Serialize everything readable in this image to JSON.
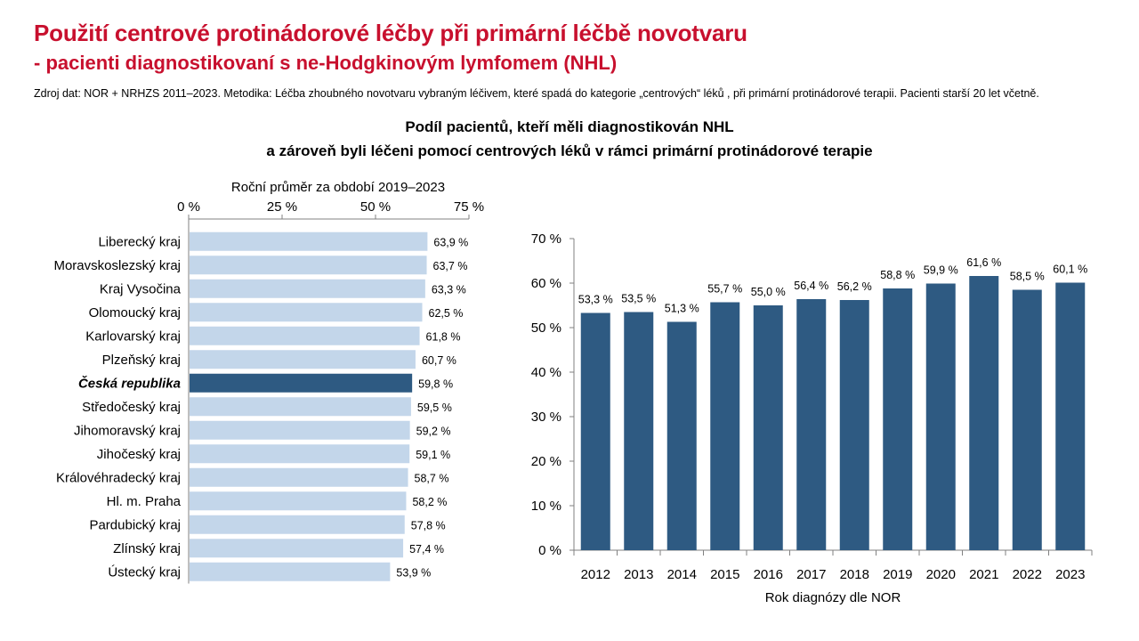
{
  "page": {
    "title": "Použití centrové protinádorové léčby při primární léčbě novotvaru",
    "subtitle": "- pacienti diagnostikovaní s ne-Hodgkinovým lymfomem (NHL)",
    "source": "Zdroj dat: NOR + NRHZS 2011–2023. Metodika: Léčba zhoubného novotvaru vybraným léčivem, které spadá do kategorie „centrových“ léků , při primární protinádorové terapii. Pacienti starší 20 let včetně.",
    "chart_heading_line1": "Podíl pacientů, kteří měli diagnostikován NHL",
    "chart_heading_line2": "a zároveň byli léčeni pomocí centrových léků v rámci primární protinádorové terapie"
  },
  "colors": {
    "title_red": "#c8102e",
    "light_bar": "#c3d6ea",
    "dark_bar": "#2e5a82",
    "axis": "#808080"
  },
  "chart_data": [
    {
      "type": "bar",
      "orientation": "horizontal",
      "title": "Roční průměr za období 2019–2023",
      "categories": [
        "Liberecký kraj",
        "Moravskoslezský kraj",
        "Kraj Vysočina",
        "Olomoucký kraj",
        "Karlovarský kraj",
        "Plzeňský kraj",
        "Česká republika",
        "Středočeský kraj",
        "Jihomoravský kraj",
        "Jihočeský kraj",
        "Královéhradecký kraj",
        "Hl. m. Praha",
        "Pardubický kraj",
        "Zlínský kraj",
        "Ústecký kraj"
      ],
      "values": [
        63.9,
        63.7,
        63.3,
        62.5,
        61.8,
        60.7,
        59.8,
        59.5,
        59.2,
        59.1,
        58.7,
        58.2,
        57.8,
        57.4,
        53.9
      ],
      "value_labels": [
        "63,9 %",
        "63,7 %",
        "63,3 %",
        "62,5 %",
        "61,8 %",
        "60,7 %",
        "59,8 %",
        "59,5 %",
        "59,2 %",
        "59,1 %",
        "58,7 %",
        "58,2 %",
        "57,8 %",
        "57,4 %",
        "53,9 %"
      ],
      "highlight": "Česká republika",
      "xlim": [
        0,
        75
      ],
      "xticks": [
        0,
        25,
        50,
        75
      ],
      "xtick_labels": [
        "0 %",
        "25 %",
        "50 %",
        "75 %"
      ],
      "axis_position": "top"
    },
    {
      "type": "bar",
      "orientation": "vertical",
      "categories": [
        "2012",
        "2013",
        "2014",
        "2015",
        "2016",
        "2017",
        "2018",
        "2019",
        "2020",
        "2021",
        "2022",
        "2023"
      ],
      "values": [
        53.3,
        53.5,
        51.3,
        55.7,
        55.0,
        56.4,
        56.2,
        58.8,
        59.9,
        61.6,
        58.5,
        60.1
      ],
      "value_labels": [
        "53,3 %",
        "53,5 %",
        "51,3 %",
        "55,7 %",
        "55,0 %",
        "56,4 %",
        "56,2 %",
        "58,8 %",
        "59,9 %",
        "61,6 %",
        "58,5 %",
        "60,1 %"
      ],
      "xlabel": "Rok diagnózy dle NOR",
      "ylim": [
        0,
        70
      ],
      "yticks": [
        0,
        10,
        20,
        30,
        40,
        50,
        60,
        70
      ],
      "ytick_labels": [
        "0 %",
        "10 %",
        "20 %",
        "30 %",
        "40 %",
        "50 %",
        "60 %",
        "70 %"
      ]
    }
  ]
}
